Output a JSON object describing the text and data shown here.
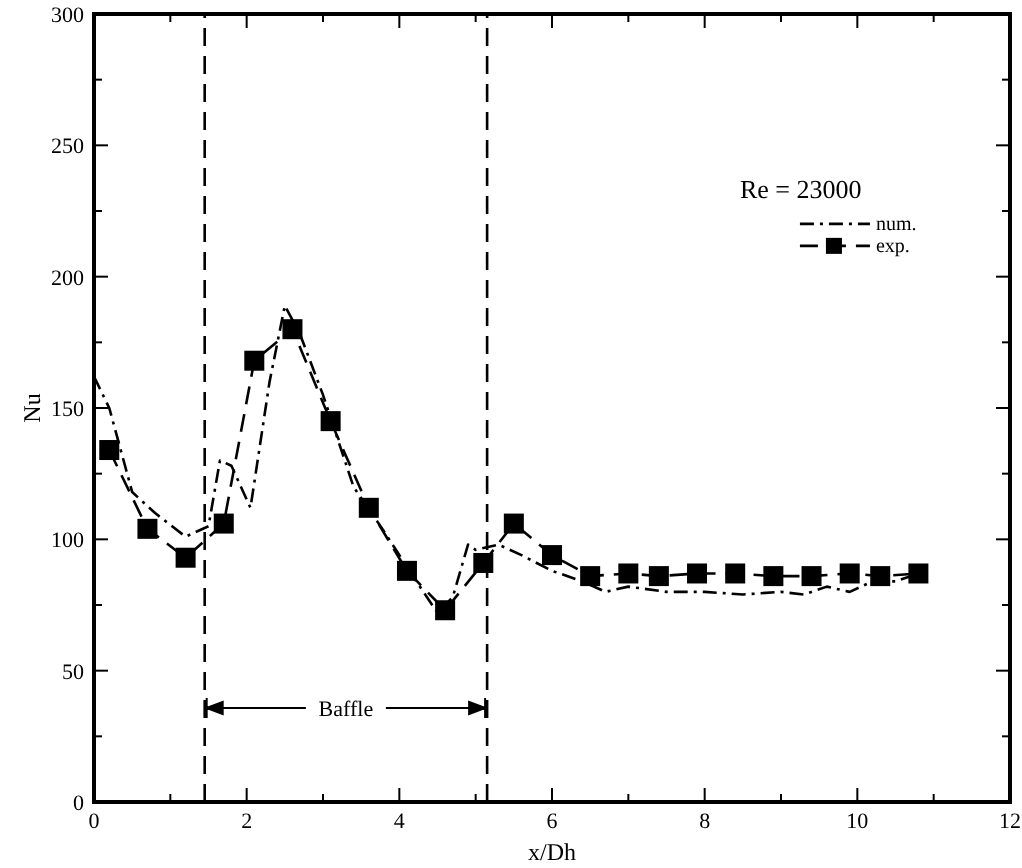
{
  "chart_data": {
    "type": "line",
    "xlabel": "x/Dh",
    "ylabel": "Nu",
    "legend_title": "Re = 23000",
    "legend": "top right",
    "xlim": [
      0,
      12
    ],
    "ylim": [
      0,
      300
    ],
    "xticks": [
      0,
      {
        "value": 1,
        "label": null
      },
      2,
      {
        "value": 3,
        "label": null
      },
      4,
      {
        "value": 5,
        "label": null
      },
      6,
      {
        "value": 7,
        "label": null
      },
      8,
      {
        "value": 9,
        "label": null
      },
      10,
      {
        "value": 11,
        "label": null
      },
      12
    ],
    "yticks": [
      0,
      {
        "value": 25,
        "label": null
      },
      50,
      {
        "value": 75,
        "label": null
      },
      100,
      {
        "value": 125,
        "label": null
      },
      150,
      {
        "value": 175,
        "label": null
      },
      200,
      {
        "value": 225,
        "label": null
      },
      250,
      {
        "value": 275,
        "label": null
      },
      300
    ],
    "series": [
      {
        "name": "num.",
        "color": "#000000",
        "line_style": "dotted",
        "marker": "none",
        "x": [
          0,
          0.2,
          0.5,
          0.8,
          1.2,
          1.5,
          1.65,
          1.8,
          2.05,
          2.3,
          2.5,
          2.7,
          3.0,
          3.4,
          3.8,
          4.2,
          4.5,
          4.7,
          4.9,
          5.0,
          5.3,
          5.6,
          6.0,
          6.4,
          6.7,
          7.0,
          7.5,
          8.0,
          8.5,
          9.0,
          9.3,
          9.6,
          9.9,
          10.2,
          10.5,
          10.8
        ],
        "values": [
          162,
          150,
          118,
          110,
          101,
          105,
          130,
          128,
          112,
          160,
          189,
          178,
          155,
          120,
          103,
          85,
          72,
          78,
          98,
          96,
          98,
          94,
          88,
          84,
          80,
          82,
          80,
          80,
          79,
          80,
          79,
          82,
          80,
          84,
          84,
          87
        ]
      },
      {
        "name": "exp.",
        "color": "#000000",
        "line_style": "dashed",
        "marker": "square",
        "x": [
          0.2,
          0.7,
          1.2,
          1.7,
          2.1,
          2.6,
          3.1,
          3.6,
          4.1,
          4.6,
          5.1,
          5.5,
          6.0,
          6.5,
          7.0,
          7.4,
          7.9,
          8.4,
          8.9,
          9.4,
          9.9,
          10.3,
          10.8
        ],
        "values": [
          134,
          104,
          93,
          106,
          168,
          180,
          145,
          112,
          88,
          73,
          91,
          106,
          94,
          86,
          87,
          86,
          87,
          87,
          86,
          86,
          87,
          86,
          87
        ]
      }
    ],
    "ref_lines": [
      {
        "axis": "x",
        "value": 1.45,
        "line_style": "dashed"
      },
      {
        "axis": "x",
        "value": 5.15,
        "line_style": "dashed"
      }
    ],
    "annotations": [
      "Baffle"
    ]
  }
}
